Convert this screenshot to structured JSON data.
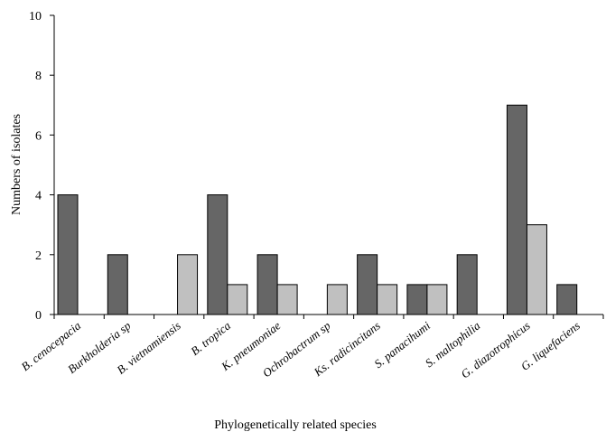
{
  "chart_data": {
    "type": "bar",
    "title": "",
    "xlabel": "Phylogenetically  related species",
    "ylabel": "Numbers of isolates",
    "ylim": [
      0,
      10
    ],
    "yticks": [
      0,
      2,
      4,
      6,
      8,
      10
    ],
    "grid": false,
    "legend": "none",
    "categories": [
      "B. cenocepacia",
      "Burkholderia sp",
      "B. vietnamiensis",
      "B. tropica",
      "K. pneumoniae",
      "Ochrobactrum sp",
      "Ks. radicincitans",
      "S. panacihumi",
      "S. maltophilia",
      "G. diazotrophicus",
      "G. liquefaciens"
    ],
    "series": [
      {
        "color": "#666666",
        "values": [
          4,
          2,
          0,
          4,
          2,
          0,
          2,
          1,
          2,
          7,
          1
        ]
      },
      {
        "color": "#c0c0c0",
        "values": [
          0,
          0,
          2,
          1,
          1,
          1,
          1,
          1,
          0,
          3,
          0
        ]
      }
    ]
  }
}
